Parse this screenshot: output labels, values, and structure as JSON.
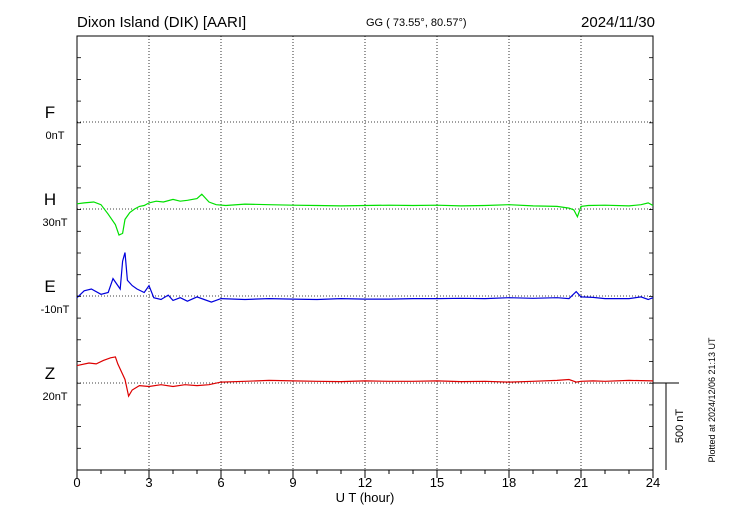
{
  "header": {
    "station": "Dixon Island (DIK)  [AARI]",
    "coords": "GG ( 73.55°,  80.57°)",
    "date": "2024/11/30"
  },
  "side_note": "Plotted at 2024/12/06 21:13 UT",
  "chart_data": {
    "type": "line",
    "xlabel": "U T (hour)",
    "xlim": [
      0,
      24
    ],
    "xticks": [
      "0",
      "3",
      "6",
      "9",
      "12",
      "15",
      "18",
      "21",
      "24"
    ],
    "scale_bar": "500 nT",
    "panel_offset_nT": 500,
    "series": [
      {
        "name": "F",
        "baseline": "0nT",
        "color": "#f0b000",
        "x": [],
        "values": []
      },
      {
        "name": "H",
        "baseline": "30nT",
        "color": "#00e000",
        "x": [
          0,
          0.3,
          0.7,
          1.0,
          1.3,
          1.6,
          1.75,
          1.9,
          2.0,
          2.2,
          2.4,
          2.6,
          2.8,
          3.0,
          3.3,
          3.6,
          4.0,
          4.3,
          4.6,
          5.0,
          5.2,
          5.5,
          5.8,
          6.2,
          7.0,
          8.0,
          9.0,
          10.0,
          11.0,
          12.0,
          13.0,
          14.0,
          15.0,
          16.0,
          17.0,
          18.0,
          19.0,
          20.0,
          20.5,
          20.7,
          20.85,
          21.0,
          21.3,
          22.0,
          23.0,
          23.5,
          23.8,
          24.0
        ],
        "values": [
          30,
          35,
          40,
          25,
          -30,
          -90,
          -150,
          -140,
          -60,
          -20,
          0,
          15,
          20,
          35,
          45,
          40,
          55,
          45,
          50,
          60,
          85,
          40,
          25,
          20,
          28,
          25,
          22,
          20,
          18,
          20,
          22,
          20,
          22,
          18,
          20,
          25,
          18,
          15,
          5,
          -5,
          -45,
          15,
          20,
          22,
          18,
          25,
          35,
          20
        ]
      },
      {
        "name": "E",
        "baseline": "-10nT",
        "color": "#0000dd",
        "x": [
          0,
          0.3,
          0.6,
          1.0,
          1.3,
          1.5,
          1.8,
          1.9,
          2.0,
          2.1,
          2.3,
          2.5,
          2.8,
          3.0,
          3.2,
          3.5,
          3.8,
          4.0,
          4.3,
          4.6,
          5.0,
          5.3,
          5.6,
          6.0,
          7.0,
          8.0,
          9.0,
          10.0,
          11.0,
          12.0,
          13.0,
          14.0,
          15.0,
          16.0,
          17.0,
          18.0,
          19.0,
          20.0,
          20.5,
          20.8,
          21.0,
          21.5,
          22.0,
          23.0,
          23.5,
          23.8,
          24.0
        ],
        "values": [
          -10,
          30,
          40,
          10,
          20,
          100,
          40,
          200,
          250,
          90,
          60,
          40,
          20,
          60,
          -10,
          -20,
          5,
          -25,
          -10,
          -30,
          -5,
          -20,
          -35,
          -15,
          -20,
          -15,
          -18,
          -20,
          -15,
          -18,
          -18,
          -15,
          -15,
          -13,
          -15,
          -10,
          -13,
          -10,
          -15,
          25,
          -5,
          -8,
          -15,
          -15,
          -5,
          -20,
          -10
        ]
      },
      {
        "name": "Z",
        "baseline": "20nT",
        "color": "#dd0000",
        "x": [
          0,
          0.5,
          0.8,
          1.1,
          1.4,
          1.6,
          1.7,
          1.9,
          2.0,
          2.15,
          2.3,
          2.6,
          3.0,
          3.5,
          4.0,
          4.5,
          5.0,
          5.5,
          6.0,
          7.0,
          8.0,
          9.0,
          10.0,
          11.0,
          12.0,
          13.0,
          14.0,
          15.0,
          16.0,
          17.0,
          18.0,
          19.0,
          20.0,
          20.5,
          20.8,
          21.0,
          21.5,
          22.0,
          23.0,
          24.0
        ],
        "values": [
          100,
          115,
          110,
          130,
          145,
          150,
          110,
          50,
          20,
          -75,
          -40,
          -15,
          -20,
          -10,
          -20,
          -10,
          -15,
          -10,
          5,
          10,
          15,
          12,
          10,
          8,
          12,
          10,
          10,
          12,
          8,
          10,
          5,
          10,
          15,
          20,
          5,
          10,
          12,
          10,
          15,
          12
        ]
      }
    ]
  }
}
